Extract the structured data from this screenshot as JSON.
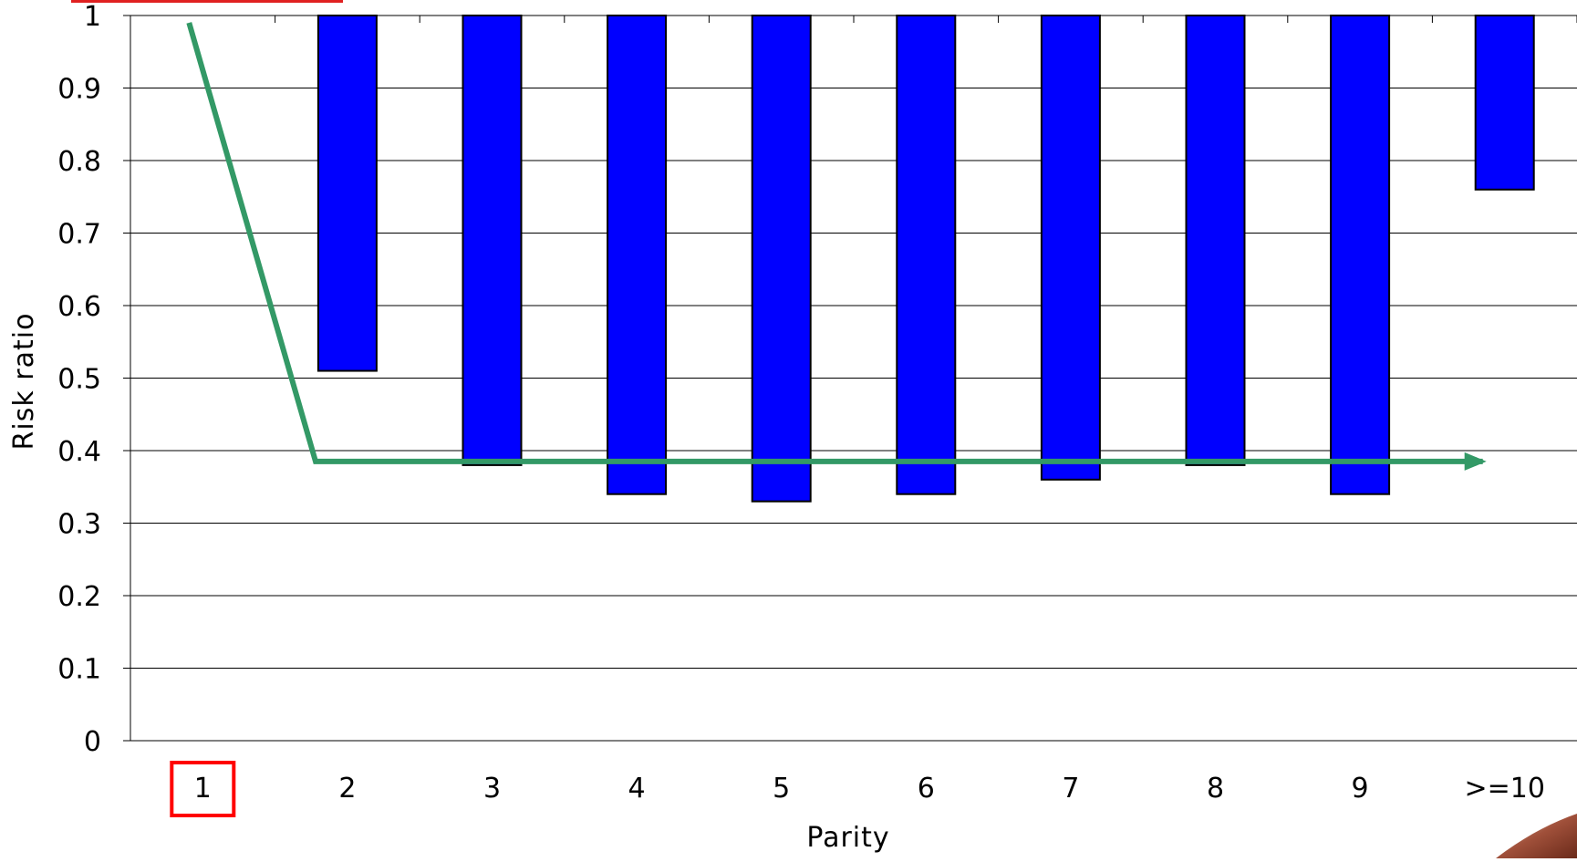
{
  "chart_data": {
    "type": "bar",
    "xlabel": "Parity",
    "ylabel": "Risk ratio",
    "categories": [
      "1",
      "2",
      "3",
      "4",
      "5",
      "6",
      "7",
      "8",
      "9",
      ">=10"
    ],
    "values": [
      1,
      0.51,
      0.38,
      0.34,
      0.33,
      0.34,
      0.36,
      0.38,
      0.34,
      0.76
    ],
    "baseline": 1,
    "ylim": [
      0,
      1
    ],
    "yticks": [
      "0",
      "0.1",
      "0.2",
      "0.3",
      "0.4",
      "0.5",
      "0.6",
      "0.7",
      "0.8",
      "0.9",
      "1"
    ],
    "grid": true,
    "bar_color": "#0000ff",
    "reference_category": "1",
    "highlight_color": "#ff0000",
    "annotation": {
      "type": "arrow",
      "color": "#339966",
      "from": {
        "category": "1",
        "value": 0.99
      },
      "knee": {
        "category": "1.5",
        "value": 0.385
      },
      "to": {
        "category": ">=10",
        "value": 0.385
      }
    }
  }
}
